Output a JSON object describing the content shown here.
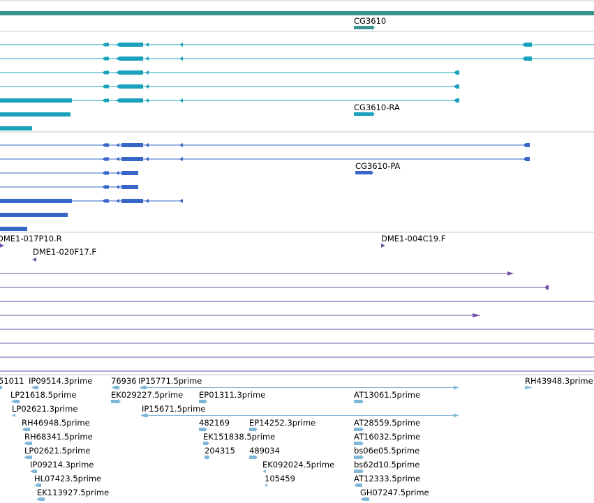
{
  "colors": {
    "gene": "#3a9490",
    "transcript": "#1aa2bc",
    "protein": "#3566c8",
    "read": "#7050a8",
    "est": "#80b6d8",
    "separator": "#c8c8c8"
  },
  "gene_track": {
    "gene_label": "CG3610"
  },
  "transcript_track": {
    "label": "CG3610-RA"
  },
  "protein_track": {
    "label": "CG3610-PA"
  },
  "read_track": {
    "labels": [
      "DME1-017P10.R",
      "DME1-004C19.F",
      "DME1-020F17.F"
    ]
  },
  "est_track": {
    "labels": [
      "51011",
      "IP09514.3prime",
      "76936",
      "IP15771.5prime",
      "RH43948.3prime",
      "LP21618.5prime",
      "EK029227.5prime",
      "EP01311.3prime",
      "AT13061.5prime",
      "LP02621.3prime",
      "IP15671.5prime",
      "RH46948.5prime",
      "482169",
      "EP14252.3prime",
      "AT28559.5prime",
      "RH68341.5prime",
      "EK151838.5prime",
      "AT16032.5prime",
      "LP02621.5prime",
      "204315",
      "489034",
      "bs06e05.5prime",
      "IP09214.3prime",
      "EK092024.5prime",
      "bs62d10.5prime",
      "HL07423.5prime",
      "105459",
      "AT12333.5prime",
      "EK113927.5prime",
      "GH07247.5prime"
    ]
  }
}
